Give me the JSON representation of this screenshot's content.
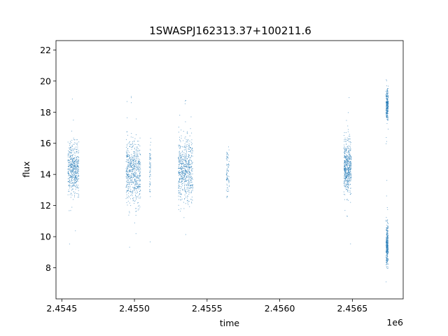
{
  "chart_data": {
    "type": "scatter",
    "title": "1SWASPJ162313.37+100211.6",
    "xlabel": "time",
    "ylabel": "flux",
    "x_offset_label": "1e6",
    "xlim": [
      2454460,
      2456850
    ],
    "ylim": [
      6.0,
      22.6
    ],
    "xticks": [
      2454500,
      2455000,
      2455500,
      2456000,
      2456500
    ],
    "xtick_labels": [
      "2.4545",
      "2.4550",
      "2.4555",
      "2.4560",
      "2.4565"
    ],
    "yticks": [
      8,
      10,
      12,
      14,
      16,
      18,
      20,
      22
    ],
    "ytick_labels": [
      "8",
      "10",
      "12",
      "14",
      "16",
      "18",
      "20",
      "22"
    ],
    "grid": false,
    "marker_color": "#1f77b4",
    "series": [
      {
        "clusters": [
          {
            "x_start": 2454540,
            "x_end": 2454615,
            "flux_center": 14.4,
            "flux_spread": 1.5,
            "n_points": 520
          },
          {
            "x_start": 2454940,
            "x_end": 2455040,
            "flux_center": 14.2,
            "flux_spread": 1.8,
            "n_points": 620
          },
          {
            "x_start": 2455100,
            "x_end": 2455110,
            "flux_center": 14.5,
            "flux_spread": 1.5,
            "n_points": 60
          },
          {
            "x_start": 2455300,
            "x_end": 2455400,
            "flux_center": 14.2,
            "flux_spread": 1.9,
            "n_points": 620
          },
          {
            "x_start": 2455630,
            "x_end": 2455650,
            "flux_center": 14.2,
            "flux_spread": 1.3,
            "n_points": 80
          },
          {
            "x_start": 2456440,
            "x_end": 2456490,
            "flux_center": 14.5,
            "flux_spread": 1.5,
            "n_points": 520
          },
          {
            "x_start": 2456730,
            "x_end": 2456745,
            "flux_center": 18.5,
            "flux_spread": 0.9,
            "n_points": 260
          },
          {
            "x_start": 2456730,
            "x_end": 2456745,
            "flux_center": 9.5,
            "flux_spread": 1.2,
            "n_points": 320
          }
        ]
      }
    ]
  }
}
